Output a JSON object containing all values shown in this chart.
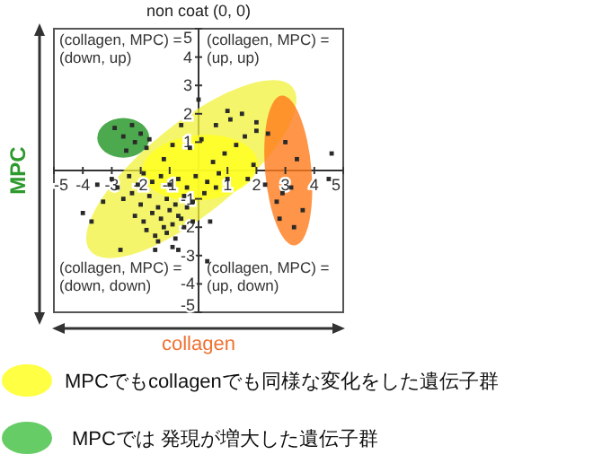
{
  "chart_data": {
    "type": "scatter",
    "title": "non coat (0, 0)",
    "xlabel": "collagen",
    "ylabel": "MPC",
    "xlim": [
      -5,
      5
    ],
    "ylim": [
      -5,
      5
    ],
    "xticks": [
      -5,
      -4,
      -3,
      -2,
      -1,
      1,
      2,
      3,
      4,
      5
    ],
    "yticks": [
      -5,
      -4,
      -3,
      -2,
      -1,
      1,
      2,
      3,
      4,
      5
    ],
    "marker": "square",
    "annotations": [
      "(collagen, MPC) =\n(down, up)",
      "(collagen, MPC) =\n(up, up)",
      "(collagen, MPC) =\n(down, down)",
      "(collagen, MPC) =\n(up, down)",
      "MPCでもcollagenでも同様な変化をした遺伝子群",
      "MPCでは 発現が増大した遺伝子群"
    ],
    "series": [
      {
        "color": "#2a2a2a",
        "x": [
          -4.0,
          -3.7,
          -2.7,
          -0.9,
          -0.7,
          0.3,
          0.4,
          1.7,
          2.3,
          2.9,
          4.5,
          4.6,
          1.0,
          0.0,
          -0.6,
          -1.7,
          -2.9,
          -2.6,
          -2.3,
          -2.0,
          -1.8,
          -2.5,
          -2.2,
          -3.0,
          -2.8,
          -2.4,
          -2.1,
          -1.9,
          -1.6,
          -1.3,
          -1.0,
          -0.7,
          -0.4,
          -0.1,
          0.3,
          0.7,
          1.0,
          -2.6,
          -2.3,
          -2.0,
          -1.7,
          -1.4,
          -1.1,
          -0.8,
          -0.5,
          -0.2,
          0.2,
          0.6,
          -2.2,
          -1.9,
          -1.6,
          -1.3,
          -1.0,
          -0.7,
          -0.4,
          -1.8,
          -1.5,
          -1.2,
          -0.9,
          -0.6,
          -1.4,
          -1.1,
          -0.8,
          -0.5,
          -0.2,
          0.5,
          0.9,
          1.3,
          1.6,
          2.0,
          -0.3,
          0.1,
          0.6,
          1.1,
          1.5,
          2.0,
          2.4,
          3.0,
          3.4,
          3.2,
          2.7,
          3.6,
          3.3,
          2.8,
          -1.2,
          -0.9,
          -3.3,
          -3.5,
          -1.5,
          1.9
        ],
        "values": [
          -1.5,
          -1.8,
          -2.8,
          -2.7,
          -2.8,
          -3.2,
          -1.8,
          -0.3,
          -0.5,
          -0.8,
          -0.3,
          0.6,
          2.1,
          2.5,
          1.6,
          1.1,
          1.5,
          1.2,
          1.6,
          1.3,
          0.8,
          0.7,
          1.0,
          -0.3,
          -0.6,
          -0.2,
          -0.5,
          -0.1,
          -0.4,
          -0.2,
          -0.5,
          -0.3,
          -0.6,
          -0.2,
          -0.4,
          -0.1,
          -0.3,
          -1.0,
          -0.8,
          -1.2,
          -0.9,
          -1.3,
          -1.0,
          -1.2,
          -0.9,
          -1.1,
          -0.8,
          -0.6,
          -1.6,
          -1.8,
          -1.5,
          -1.7,
          -1.4,
          -1.6,
          -1.3,
          -2.1,
          -2.3,
          -2.0,
          -1.9,
          -1.7,
          -2.5,
          -2.2,
          -2.4,
          -2.0,
          -1.8,
          0.3,
          0.6,
          0.9,
          1.2,
          1.4,
          0.8,
          1.1,
          1.6,
          1.8,
          2.0,
          1.7,
          1.3,
          1.0,
          0.4,
          -0.6,
          -1.1,
          -1.4,
          -2.0,
          -1.7,
          0.4,
          0.9,
          -1.1,
          -0.5,
          -2.8,
          0.2
        ]
      }
    ]
  }
}
